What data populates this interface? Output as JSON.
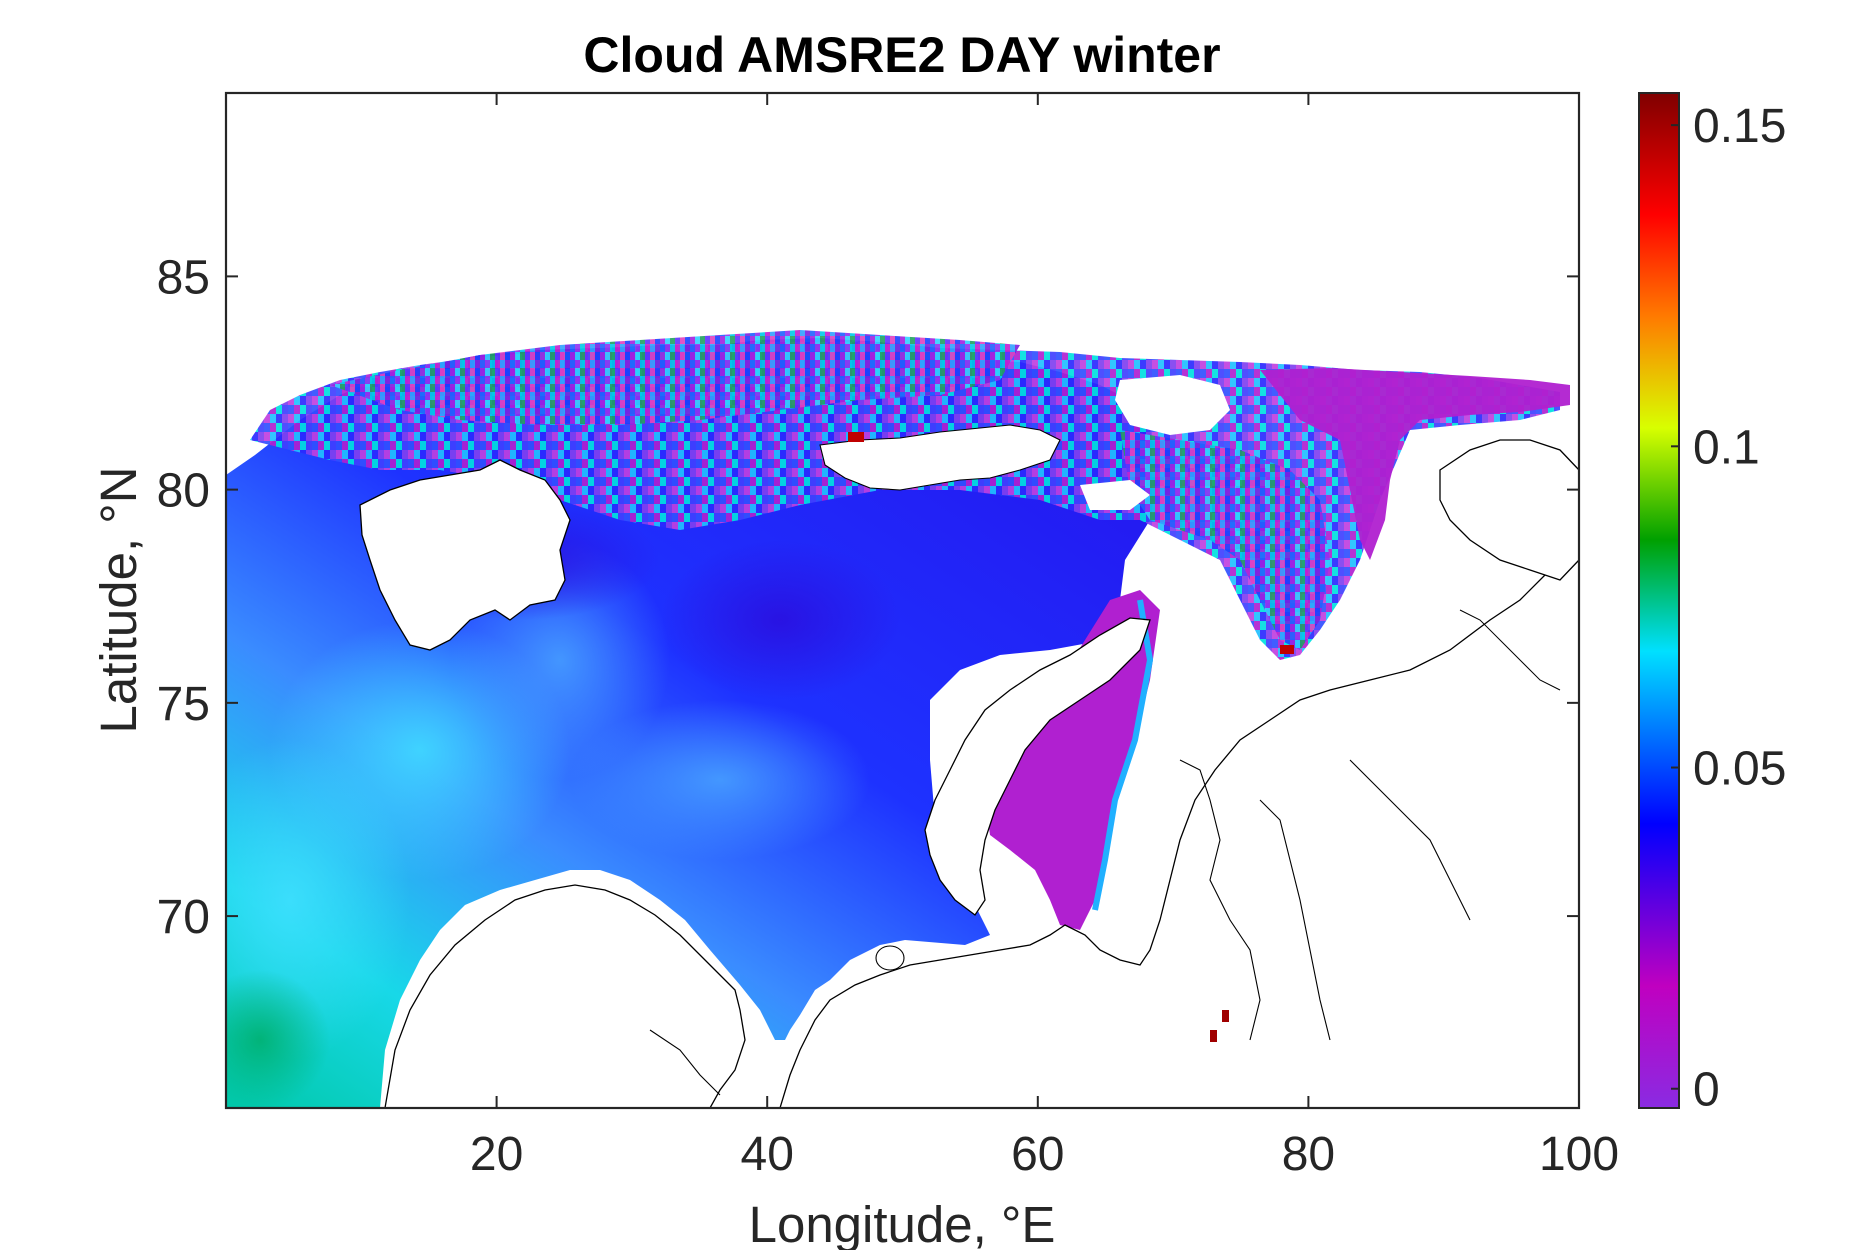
{
  "chart_data": {
    "type": "heatmap",
    "title": "Cloud AMSRE2 DAY winter",
    "xlabel": "Longitude, °E",
    "ylabel": "Latitude, °N",
    "xlim": [
      0,
      100
    ],
    "ylim": [
      65.5,
      89.3
    ],
    "x_ticks": [
      "20",
      "40",
      "60",
      "80",
      "100"
    ],
    "x_tick_values": [
      20,
      40,
      60,
      80,
      100
    ],
    "y_ticks": [
      "70",
      "75",
      "80",
      "85"
    ],
    "y_tick_values": [
      70,
      75,
      80,
      85
    ],
    "colorbar": {
      "colormap": "jet-like: violet → blue → cyan → green → yellow → red → dark red",
      "clim": [
        -0.003,
        0.155
      ],
      "ticks": [
        "0",
        "0.05",
        "0.1",
        "0.15"
      ],
      "tick_values": [
        0,
        0.05,
        0.1,
        0.15
      ],
      "stops": [
        "#8a2be2",
        "#c000c0",
        "#0000ff",
        "#00ffff",
        "#00a000",
        "#ffff00",
        "#ff0000",
        "#800000"
      ]
    },
    "grid": false,
    "colors": {
      "ocean_low": "#1a1aff",
      "ocean_mid": "#4f9bff",
      "ocean_high": "#00e5e5",
      "kara_sea": "#b020d0",
      "land": "#ffffff",
      "coastline": "#000000"
    }
  }
}
